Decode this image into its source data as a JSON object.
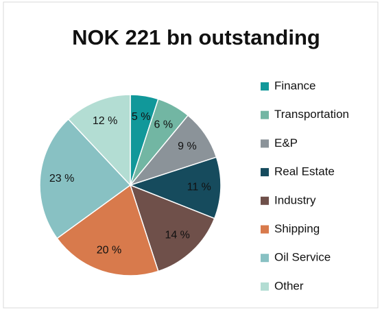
{
  "chart_data": {
    "type": "pie",
    "title": "NOK 221 bn outstanding",
    "categories": [
      "Finance",
      "Transportation",
      "E&P",
      "Real Estate",
      "Industry",
      "Shipping",
      "Oil Service",
      "Other"
    ],
    "values": [
      5,
      6,
      9,
      11,
      14,
      20,
      23,
      12
    ],
    "value_labels": [
      "5 %",
      "6 %",
      "9 %",
      "11 %",
      "14 %",
      "20 %",
      "23 %",
      "12 %"
    ],
    "colors": [
      "#11989a",
      "#72b6a3",
      "#8b9399",
      "#164b5d",
      "#6f504a",
      "#d87a4c",
      "#88c1c3",
      "#b3ddd3"
    ],
    "legend": "right"
  }
}
